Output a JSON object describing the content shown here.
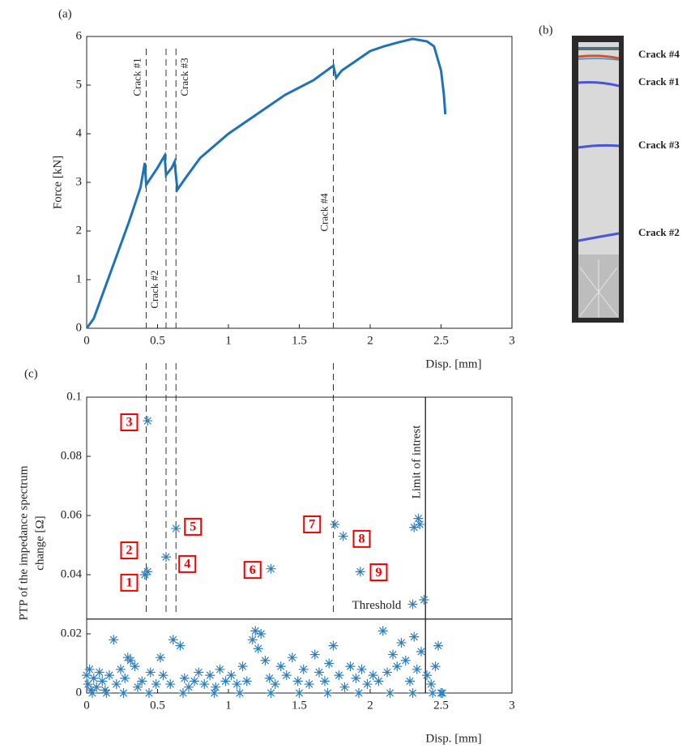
{
  "panels": {
    "a": "(a)",
    "b": "(b)",
    "c": "(c)"
  },
  "photo": {
    "crack_labels": [
      "Crack #4",
      "Crack #1",
      "Crack #3",
      "Crack #2"
    ]
  },
  "chart_data": [
    {
      "type": "line",
      "xlabel": "Disp. [mm]",
      "ylabel": "Force [kN]",
      "xlim": [
        0,
        3
      ],
      "ylim": [
        0,
        6
      ],
      "xticks": [
        0,
        0.5,
        1,
        1.5,
        2,
        2.5,
        3
      ],
      "yticks": [
        0,
        1,
        2,
        3,
        4,
        5,
        6
      ],
      "x": [
        0,
        0.05,
        0.1,
        0.2,
        0.3,
        0.38,
        0.41,
        0.42,
        0.5,
        0.55,
        0.56,
        0.6,
        0.62,
        0.64,
        0.7,
        0.8,
        1.0,
        1.2,
        1.4,
        1.6,
        1.74,
        1.76,
        1.8,
        1.9,
        2.0,
        2.1,
        2.2,
        2.3,
        2.4,
        2.45,
        2.5,
        2.52,
        2.53
      ],
      "series": [
        {
          "color": "#1f72b8",
          "values": [
            0,
            0.2,
            0.6,
            1.4,
            2.2,
            2.9,
            3.4,
            2.95,
            3.3,
            3.55,
            3.15,
            3.3,
            3.42,
            2.85,
            3.1,
            3.5,
            4.0,
            4.4,
            4.8,
            5.1,
            5.4,
            5.15,
            5.3,
            5.5,
            5.7,
            5.8,
            5.88,
            5.95,
            5.9,
            5.8,
            5.3,
            4.8,
            4.4
          ]
        }
      ],
      "crack_lines": [
        {
          "label": "Crack #1",
          "x": 0.42
        },
        {
          "label": "Crack #2",
          "x": 0.56
        },
        {
          "label": "Crack #3",
          "x": 0.63
        },
        {
          "label": "Crack #4",
          "x": 1.74
        }
      ]
    },
    {
      "type": "scatter",
      "xlabel": "Disp. [mm]",
      "ylabel": [
        "PTP of the impedance spectrum",
        "change [Ω]"
      ],
      "xlim": [
        0,
        3
      ],
      "ylim": [
        0,
        0.1
      ],
      "xticks": [
        0,
        0.5,
        1,
        1.5,
        2,
        2.5,
        3
      ],
      "yticks": [
        0,
        0.02,
        0.04,
        0.06,
        0.08,
        0.1
      ],
      "threshold": {
        "value": 0.025,
        "label": "Threshold"
      },
      "limit": {
        "value": 2.39,
        "label": "Limit of intrest"
      },
      "annotations": [
        {
          "text": "1",
          "x": 0.3,
          "y": 0.0373
        },
        {
          "text": "2",
          "x": 0.3,
          "y": 0.0482
        },
        {
          "text": "3",
          "x": 0.3,
          "y": 0.0915
        },
        {
          "text": "4",
          "x": 0.71,
          "y": 0.0436
        },
        {
          "text": "5",
          "x": 0.75,
          "y": 0.0562
        },
        {
          "text": "6",
          "x": 1.17,
          "y": 0.0416
        },
        {
          "text": "7",
          "x": 1.59,
          "y": 0.057
        },
        {
          "text": "8",
          "x": 1.94,
          "y": 0.0521
        },
        {
          "text": "9",
          "x": 2.06,
          "y": 0.0408
        }
      ],
      "series": [
        {
          "color": "#2e7ebf",
          "x": [
            0.43,
            0.43,
            0.41,
            0.56,
            0.63,
            1.3,
            1.75,
            1.81,
            1.93,
            2.3,
            2.38,
            2.31,
            2.35,
            2.34,
            0,
            0.01,
            0.02,
            0.03,
            0.05,
            0.07,
            0.09,
            0.11,
            0.13,
            0.16,
            0.19,
            0.21,
            0.24,
            0.27,
            0.29,
            0.31,
            0.34,
            0.36,
            0.39,
            0.45,
            0.49,
            0.52,
            0.54,
            0.59,
            0.61,
            0.66,
            0.69,
            0.72,
            0.76,
            0.79,
            0.83,
            0.87,
            0.91,
            0.94,
            0.98,
            1.02,
            1.06,
            1.1,
            1.13,
            1.17,
            1.19,
            1.21,
            1.23,
            1.26,
            1.29,
            1.33,
            1.37,
            1.41,
            1.45,
            1.49,
            1.53,
            1.57,
            1.61,
            1.64,
            1.68,
            1.71,
            1.74,
            1.78,
            1.82,
            1.86,
            1.9,
            1.94,
            1.98,
            2.02,
            2.06,
            2.09,
            2.12,
            2.16,
            2.19,
            2.22,
            2.25,
            2.28,
            2.31,
            2.33,
            2.36,
            2.4,
            2.43,
            2.46,
            2.48,
            2.5,
            0.04,
            0.14,
            0.26,
            0.44,
            0.68,
            0.9,
            1.08,
            1.3,
            1.5,
            1.7,
            1.92,
            2.14,
            2.3,
            2.44,
            2.51
          ],
          "values": [
            0.092,
            0.041,
            0.04,
            0.046,
            0.0556,
            0.042,
            0.057,
            0.053,
            0.041,
            0.03,
            0.0315,
            0.056,
            0.057,
            0.059,
            0.006,
            0.003,
            0.008,
            0.001,
            0.005,
            0.002,
            0.007,
            0.004,
            0.001,
            0.006,
            0.018,
            0.003,
            0.008,
            0.005,
            0.012,
            0.011,
            0.009,
            0.002,
            0.004,
            0.007,
            0.003,
            0.012,
            0.006,
            0.003,
            0.018,
            0.016,
            0.005,
            0.002,
            0.004,
            0.007,
            0.003,
            0.006,
            0.002,
            0.008,
            0.004,
            0.006,
            0.003,
            0.009,
            0.004,
            0.018,
            0.021,
            0.015,
            0.02,
            0.011,
            0.005,
            0.003,
            0.009,
            0.006,
            0.012,
            0.004,
            0.008,
            0.003,
            0.013,
            0.007,
            0.004,
            0.01,
            0.016,
            0.006,
            0.002,
            0.009,
            0.005,
            0.008,
            0.003,
            0.006,
            0.004,
            0.021,
            0.007,
            0.013,
            0.009,
            0.017,
            0.011,
            0.004,
            0.019,
            0.008,
            0.014,
            0.006,
            0.003,
            0.009,
            0.016,
            0,
            0,
            0,
            0,
            0,
            0,
            0,
            0,
            0,
            0,
            0,
            0,
            0,
            0,
            0,
            0
          ]
        }
      ]
    }
  ]
}
